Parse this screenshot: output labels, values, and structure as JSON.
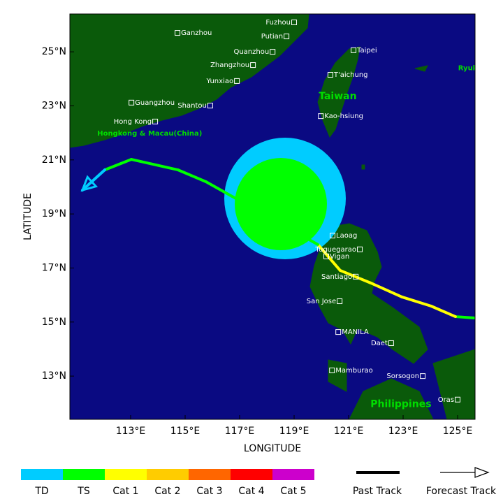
{
  "map": {
    "xlabel": "LONGITUDE",
    "ylabel": "LATITUDE",
    "xlim": [
      110.77,
      125.64
    ],
    "ylim": [
      11.4,
      26.4
    ],
    "xticks": [
      {
        "value": 113,
        "label": "113°E"
      },
      {
        "value": 115,
        "label": "115°E"
      },
      {
        "value": 117,
        "label": "117°E"
      },
      {
        "value": 119,
        "label": "119°E"
      },
      {
        "value": 121,
        "label": "121°E"
      },
      {
        "value": 123,
        "label": "123°E"
      },
      {
        "value": 125,
        "label": "125°E"
      }
    ],
    "yticks": [
      {
        "value": 13,
        "label": "13°N"
      },
      {
        "value": 15,
        "label": "15°N"
      },
      {
        "value": 17,
        "label": "17°N"
      },
      {
        "value": 19,
        "label": "19°N"
      },
      {
        "value": 21,
        "label": "21°N"
      },
      {
        "value": 23,
        "label": "23°N"
      },
      {
        "value": 25,
        "label": "25°N"
      }
    ],
    "cities": [
      {
        "name": "Fuzhou",
        "lon": 119.0,
        "lat": 26.09,
        "side": "left"
      },
      {
        "name": "Putian",
        "lon": 118.72,
        "lat": 25.57,
        "side": "left"
      },
      {
        "name": "Ganzhou",
        "lon": 114.72,
        "lat": 25.7,
        "side": "right"
      },
      {
        "name": "Quanzhou",
        "lon": 118.21,
        "lat": 25.0,
        "side": "left"
      },
      {
        "name": "Taipei",
        "lon": 121.18,
        "lat": 25.06,
        "side": "right"
      },
      {
        "name": "Zhangzhou",
        "lon": 117.49,
        "lat": 24.51,
        "side": "left"
      },
      {
        "name": "T'aichung",
        "lon": 120.33,
        "lat": 24.15,
        "side": "right"
      },
      {
        "name": "Yunxiao",
        "lon": 116.9,
        "lat": 23.92,
        "side": "left"
      },
      {
        "name": "Guangzhou",
        "lon": 113.03,
        "lat": 23.12,
        "side": "right"
      },
      {
        "name": "Shantou",
        "lon": 115.92,
        "lat": 23.01,
        "side": "left"
      },
      {
        "name": "Hong Kong",
        "lon": 113.9,
        "lat": 22.42,
        "side": "left"
      },
      {
        "name": "Kao-hsiung",
        "lon": 119.98,
        "lat": 22.62,
        "side": "right"
      },
      {
        "name": "Laoag",
        "lon": 120.41,
        "lat": 18.2,
        "side": "right"
      },
      {
        "name": "Tuguegarao",
        "lon": 121.41,
        "lat": 17.69,
        "side": "left"
      },
      {
        "name": "Vigan",
        "lon": 120.18,
        "lat": 17.43,
        "side": "right"
      },
      {
        "name": "Santiago",
        "lon": 121.26,
        "lat": 16.68,
        "side": "left"
      },
      {
        "name": "San Jose",
        "lon": 120.67,
        "lat": 15.77,
        "side": "left"
      },
      {
        "name": "MANILA",
        "lon": 120.62,
        "lat": 14.63,
        "side": "right"
      },
      {
        "name": "Daet",
        "lon": 122.56,
        "lat": 14.22,
        "side": "left"
      },
      {
        "name": "Mamburao",
        "lon": 120.39,
        "lat": 13.21,
        "side": "right"
      },
      {
        "name": "Sorsogon",
        "lon": 123.72,
        "lat": 13.0,
        "side": "left"
      },
      {
        "name": "Oras",
        "lon": 125.0,
        "lat": 12.13,
        "side": "left"
      }
    ],
    "regions": [
      {
        "name": "Taiwan",
        "lon": 120.6,
        "lat": 23.35,
        "size": "big"
      },
      {
        "name": "Hongkong & Macau(China)",
        "lon": 113.7,
        "lat": 21.98,
        "size": "small"
      },
      {
        "name": "Philippines",
        "lon": 122.92,
        "lat": 11.95,
        "size": "big"
      },
      {
        "name": "Ryukyu I",
        "lon": 125.64,
        "lat": 24.4,
        "size": "small"
      }
    ],
    "track": [
      {
        "lon": 125.64,
        "lat": 15.15,
        "cat": "TS"
      },
      {
        "lon": 124.92,
        "lat": 15.2,
        "cat": "Cat 1"
      },
      {
        "lon": 124.03,
        "lat": 15.59,
        "cat": "Cat 1"
      },
      {
        "lon": 122.95,
        "lat": 15.93,
        "cat": "Cat 1"
      },
      {
        "lon": 121.8,
        "lat": 16.45,
        "cat": "Cat 1"
      },
      {
        "lon": 120.69,
        "lat": 16.91,
        "cat": "Cat 1"
      },
      {
        "lon": 119.87,
        "lat": 17.87,
        "cat": "TS"
      },
      {
        "lon": 115.77,
        "lat": 20.19,
        "cat": "TS"
      },
      {
        "lon": 114.74,
        "lat": 20.63,
        "cat": "TS"
      },
      {
        "lon": 113.03,
        "lat": 21.02,
        "cat": "TS"
      },
      {
        "lon": 112.05,
        "lat": 20.63,
        "cat": "TD"
      },
      {
        "lon": 111.23,
        "lat": 19.88,
        "cat": "TD"
      }
    ],
    "legend": [
      {
        "name": "TD",
        "color": "#00ccff"
      },
      {
        "name": "TS",
        "color": "#00ff00"
      },
      {
        "name": "Cat 1",
        "color": "#ffff00"
      },
      {
        "name": "Cat 2",
        "color": "#ffcc00"
      },
      {
        "name": "Cat 3",
        "color": "#ff6600"
      },
      {
        "name": "Cat 4",
        "color": "#ff0000"
      },
      {
        "name": "Cat 5",
        "color": "#cc00cc"
      }
    ],
    "past_track": "Past Track",
    "forecast_track": "Forecast Track"
  }
}
